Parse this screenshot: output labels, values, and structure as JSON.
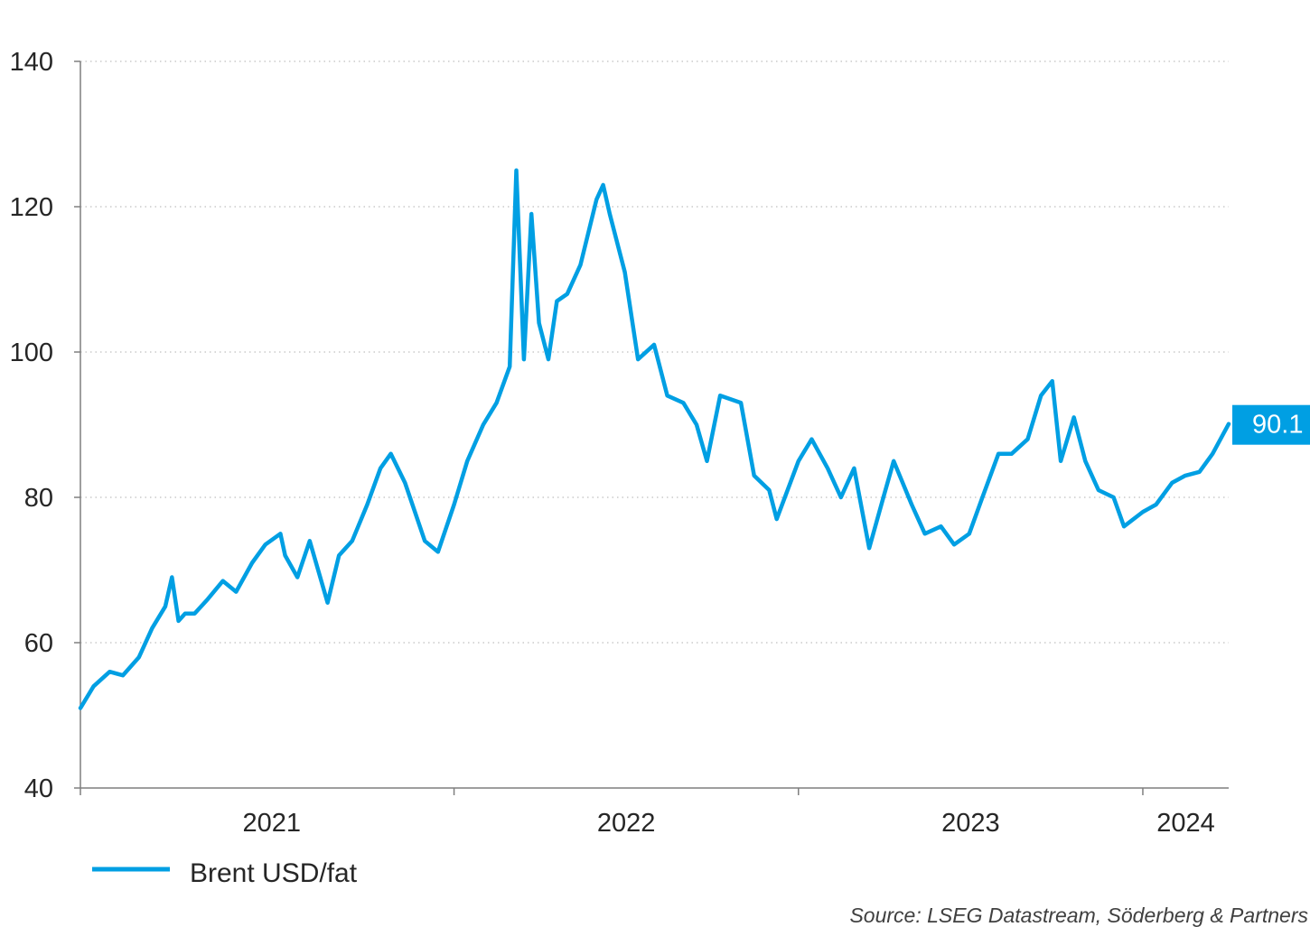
{
  "chart_data": {
    "type": "line",
    "title": "",
    "xlabel": "",
    "ylabel": "",
    "ylim": [
      40,
      140
    ],
    "y_ticks": [
      40,
      60,
      80,
      100,
      120,
      140
    ],
    "x_range": [
      "2020-12-01",
      "2024-04-01"
    ],
    "x_tick_labels": [
      "2021",
      "2022",
      "2023",
      "2024"
    ],
    "grid": "horizontal dotted",
    "legend_position": "bottom-left",
    "series_color": "#009fe3",
    "last_value_label": "90.1",
    "source": "Source: LSEG Datastream, Söderberg & Partners",
    "series": [
      {
        "name": "Brent USD/fat",
        "x": [
          "2020-12-01",
          "2020-12-15",
          "2021-01-01",
          "2021-01-15",
          "2021-02-01",
          "2021-02-15",
          "2021-03-01",
          "2021-03-08",
          "2021-03-15",
          "2021-03-22",
          "2021-04-01",
          "2021-04-15",
          "2021-05-01",
          "2021-05-15",
          "2021-06-01",
          "2021-06-15",
          "2021-07-01",
          "2021-07-06",
          "2021-07-19",
          "2021-08-01",
          "2021-08-20",
          "2021-09-01",
          "2021-09-15",
          "2021-10-01",
          "2021-10-15",
          "2021-10-26",
          "2021-11-10",
          "2021-12-01",
          "2021-12-15",
          "2022-01-01",
          "2022-01-15",
          "2022-02-01",
          "2022-02-15",
          "2022-03-01",
          "2022-03-08",
          "2022-03-16",
          "2022-03-24",
          "2022-04-01",
          "2022-04-11",
          "2022-04-20",
          "2022-05-01",
          "2022-05-15",
          "2022-06-01",
          "2022-06-08",
          "2022-06-15",
          "2022-07-01",
          "2022-07-15",
          "2022-08-01",
          "2022-08-15",
          "2022-09-01",
          "2022-09-15",
          "2022-09-26",
          "2022-10-10",
          "2022-11-01",
          "2022-11-15",
          "2022-12-01",
          "2022-12-09",
          "2023-01-01",
          "2023-01-15",
          "2023-02-01",
          "2023-02-15",
          "2023-03-01",
          "2023-03-17",
          "2023-04-01",
          "2023-04-12",
          "2023-05-01",
          "2023-05-15",
          "2023-06-01",
          "2023-06-15",
          "2023-07-01",
          "2023-07-15",
          "2023-08-01",
          "2023-08-15",
          "2023-09-01",
          "2023-09-15",
          "2023-09-27",
          "2023-10-06",
          "2023-10-20",
          "2023-11-01",
          "2023-11-15",
          "2023-12-01",
          "2023-12-12",
          "2024-01-01",
          "2024-01-15",
          "2024-02-01",
          "2024-02-15",
          "2024-03-01",
          "2024-03-15",
          "2024-04-01"
        ],
        "values": [
          51,
          54,
          56,
          55.5,
          58,
          62,
          65,
          69,
          63,
          64,
          64,
          66,
          68.5,
          67,
          71,
          73.5,
          75,
          72,
          69,
          74,
          65.5,
          72,
          74,
          79,
          84,
          86,
          82,
          74,
          72.5,
          79,
          85,
          90,
          93,
          98,
          125,
          99,
          119,
          104,
          99,
          107,
          108,
          112,
          121,
          123,
          119,
          111,
          99,
          101,
          94,
          93,
          90,
          85,
          94,
          93,
          83,
          81,
          77,
          85,
          88,
          84,
          80,
          84,
          73,
          80,
          85,
          79,
          75,
          76,
          73.5,
          75,
          80,
          86,
          86,
          88,
          94,
          96,
          85,
          91,
          85,
          81,
          80,
          76,
          78,
          79,
          82,
          83,
          83.5,
          86,
          90.1
        ]
      }
    ]
  }
}
